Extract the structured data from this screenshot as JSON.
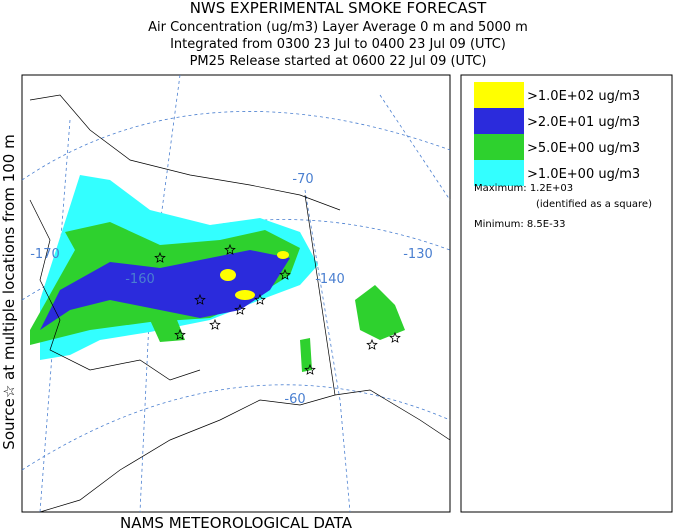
{
  "header": {
    "title": "NWS EXPERIMENTAL SMOKE FORECAST",
    "lines": [
      "Air Concentration (ug/m3) Layer Average    0 m and  5000 m",
      "Integrated from 0300 23 Jul to 0400 23 Jul 09 (UTC)",
      "PM25 Release started at 0600 22 Jul 09 (UTC)"
    ]
  },
  "side_label": "Source☆ at multiple locations from  100 m",
  "map": {
    "grid_labels": [
      "-70",
      "-170",
      "-160",
      "-140",
      "-130",
      "-60"
    ]
  },
  "legend": {
    "items": [
      {
        "label": ">1.0E+02 ug/m3",
        "color": "#ffff00"
      },
      {
        "label": ">2.0E+01 ug/m3",
        "color": "#2b2bdc"
      },
      {
        "label": ">5.0E+00 ug/m3",
        "color": "#2ed12e"
      },
      {
        "label": ">1.0E+00 ug/m3",
        "color": "#33ffff"
      }
    ],
    "maximum": "Maximum: 1.2E+03",
    "maximum_note": "(identified as a square)",
    "minimum": "Minimum: 8.5E-33"
  },
  "footer": "NAMS METEOROLOGICAL DATA"
}
